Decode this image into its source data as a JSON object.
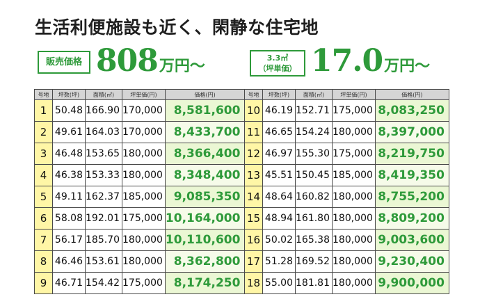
{
  "headline": "生活利便施設も近く、閑静な住宅地",
  "price_summary": {
    "sale_badge": "販売価格",
    "sale_price": "808",
    "sale_unit": "万円〜",
    "tsubo_badge_line1": "3.3㎡",
    "tsubo_badge_line2": "（坪単価）",
    "tsubo_price": "17.0",
    "tsubo_unit": "万円〜"
  },
  "columns": [
    "号地",
    "坪数(坪)",
    "面積(㎡)",
    "坪単価(円)",
    "価格(円)"
  ],
  "colors": {
    "accent_green": "#2e9a3a",
    "lot_number_bg": "#fff6a6",
    "price_bg": "#ebf7d4"
  },
  "lots_left": [
    {
      "no": "1",
      "tsubo": "50.48",
      "area": "166.90",
      "unit_price": "170,000",
      "price": "8,581,600"
    },
    {
      "no": "2",
      "tsubo": "49.61",
      "area": "164.03",
      "unit_price": "170,000",
      "price": "8,433,700"
    },
    {
      "no": "3",
      "tsubo": "46.48",
      "area": "153.65",
      "unit_price": "180,000",
      "price": "8,366,400"
    },
    {
      "no": "4",
      "tsubo": "46.38",
      "area": "153.33",
      "unit_price": "180,000",
      "price": "8,348,400"
    },
    {
      "no": "5",
      "tsubo": "49.11",
      "area": "162.37",
      "unit_price": "185,000",
      "price": "9,085,350"
    },
    {
      "no": "6",
      "tsubo": "58.08",
      "area": "192.01",
      "unit_price": "175,000",
      "price": "10,164,000"
    },
    {
      "no": "7",
      "tsubo": "56.17",
      "area": "185.70",
      "unit_price": "180,000",
      "price": "10,110,600"
    },
    {
      "no": "8",
      "tsubo": "46.46",
      "area": "153.61",
      "unit_price": "180,000",
      "price": "8,362,800"
    },
    {
      "no": "9",
      "tsubo": "46.71",
      "area": "154.42",
      "unit_price": "175,000",
      "price": "8,174,250"
    }
  ],
  "lots_right": [
    {
      "no": "10",
      "tsubo": "46.19",
      "area": "152.71",
      "unit_price": "175,000",
      "price": "8,083,250"
    },
    {
      "no": "11",
      "tsubo": "46.65",
      "area": "154.24",
      "unit_price": "180,000",
      "price": "8,397,000"
    },
    {
      "no": "12",
      "tsubo": "46.97",
      "area": "155.30",
      "unit_price": "175,000",
      "price": "8,219,750"
    },
    {
      "no": "13",
      "tsubo": "45.51",
      "area": "150.45",
      "unit_price": "185,000",
      "price": "8,419,350"
    },
    {
      "no": "14",
      "tsubo": "48.64",
      "area": "160.82",
      "unit_price": "180,000",
      "price": "8,755,200"
    },
    {
      "no": "15",
      "tsubo": "48.94",
      "area": "161.80",
      "unit_price": "180,000",
      "price": "8,809,200"
    },
    {
      "no": "16",
      "tsubo": "50.02",
      "area": "165.38",
      "unit_price": "180,000",
      "price": "9,003,600"
    },
    {
      "no": "17",
      "tsubo": "51.28",
      "area": "169.52",
      "unit_price": "180,000",
      "price": "9,230,400"
    },
    {
      "no": "18",
      "tsubo": "55.00",
      "area": "181.81",
      "unit_price": "180,000",
      "price": "9,900,000"
    }
  ]
}
